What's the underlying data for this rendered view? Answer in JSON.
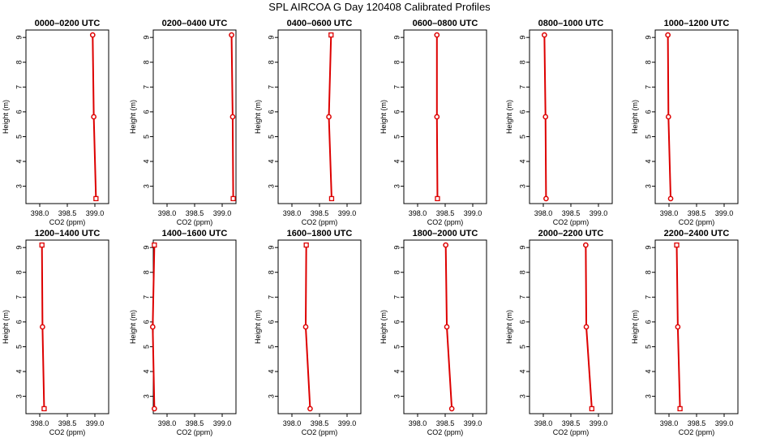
{
  "figure": {
    "title": "SPL AIRCOA G  Day 120408  Calibrated Profiles"
  },
  "style": {
    "line_color": "#dd0000",
    "marker_color": "#dd0000",
    "axis_color": "#000000"
  },
  "chart_data": [
    {
      "type": "line",
      "title": "0000–0200 UTC",
      "xlabel": "CO2 (ppm)",
      "ylabel": "Height (m)",
      "xlim": [
        397.75,
        399.25
      ],
      "ylim": [
        2.3,
        9.3
      ],
      "xticks": [
        "398.0",
        "398.5",
        "399.0"
      ],
      "yticks": [
        "3",
        "4",
        "5",
        "6",
        "7",
        "8",
        "9"
      ],
      "series": [
        {
          "heights": [
            2.5,
            5.8,
            9.1
          ],
          "values": [
            399.02,
            398.98,
            398.96
          ],
          "markers": [
            "square",
            "circle",
            "circle"
          ]
        }
      ]
    },
    {
      "type": "line",
      "title": "0200–0400 UTC",
      "xlabel": "CO2 (ppm)",
      "ylabel": "Height (m)",
      "xlim": [
        397.75,
        399.25
      ],
      "ylim": [
        2.3,
        9.3
      ],
      "xticks": [
        "398.0",
        "398.5",
        "399.0"
      ],
      "yticks": [
        "3",
        "4",
        "5",
        "6",
        "7",
        "8",
        "9"
      ],
      "series": [
        {
          "heights": [
            2.5,
            5.8,
            9.1
          ],
          "values": [
            399.2,
            399.19,
            399.17
          ],
          "markers": [
            "square",
            "circle",
            "circle"
          ]
        }
      ]
    },
    {
      "type": "line",
      "title": "0400–0600 UTC",
      "xlabel": "CO2 (ppm)",
      "ylabel": "Height (m)",
      "xlim": [
        397.75,
        399.25
      ],
      "ylim": [
        2.3,
        9.3
      ],
      "xticks": [
        "398.0",
        "398.5",
        "399.0"
      ],
      "yticks": [
        "3",
        "4",
        "5",
        "6",
        "7",
        "8",
        "9"
      ],
      "series": [
        {
          "heights": [
            2.5,
            5.8,
            9.1
          ],
          "values": [
            398.72,
            398.67,
            398.71
          ],
          "markers": [
            "square",
            "circle",
            "square"
          ]
        }
      ]
    },
    {
      "type": "line",
      "title": "0600–0800 UTC",
      "xlabel": "CO2 (ppm)",
      "ylabel": "Height (m)",
      "xlim": [
        397.75,
        399.25
      ],
      "ylim": [
        2.3,
        9.3
      ],
      "xticks": [
        "398.0",
        "398.5",
        "399.0"
      ],
      "yticks": [
        "3",
        "4",
        "5",
        "6",
        "7",
        "8",
        "9"
      ],
      "series": [
        {
          "heights": [
            2.5,
            5.8,
            9.1
          ],
          "values": [
            398.36,
            398.35,
            398.35
          ],
          "markers": [
            "square",
            "circle",
            "circle"
          ]
        }
      ]
    },
    {
      "type": "line",
      "title": "0800–1000 UTC",
      "xlabel": "CO2 (ppm)",
      "ylabel": "Height (m)",
      "xlim": [
        397.75,
        399.25
      ],
      "ylim": [
        2.3,
        9.3
      ],
      "xticks": [
        "398.0",
        "398.5",
        "399.0"
      ],
      "yticks": [
        "3",
        "4",
        "5",
        "6",
        "7",
        "8",
        "9"
      ],
      "series": [
        {
          "heights": [
            2.5,
            5.8,
            9.1
          ],
          "values": [
            398.05,
            398.04,
            398.02
          ],
          "markers": [
            "circle",
            "circle",
            "circle"
          ]
        }
      ]
    },
    {
      "type": "line",
      "title": "1000–1200 UTC",
      "xlabel": "CO2 (ppm)",
      "ylabel": "Height (m)",
      "xlim": [
        397.75,
        399.25
      ],
      "ylim": [
        2.3,
        9.3
      ],
      "xticks": [
        "398.0",
        "398.5",
        "399.0"
      ],
      "yticks": [
        "3",
        "4",
        "5",
        "6",
        "7",
        "8",
        "9"
      ],
      "series": [
        {
          "heights": [
            2.5,
            5.8,
            9.1
          ],
          "values": [
            398.03,
            397.99,
            397.98
          ],
          "markers": [
            "circle",
            "circle",
            "circle"
          ]
        }
      ]
    },
    {
      "type": "line",
      "title": "1200–1400 UTC",
      "xlabel": "CO2 (ppm)",
      "ylabel": "Height (m)",
      "xlim": [
        397.75,
        399.25
      ],
      "ylim": [
        2.3,
        9.3
      ],
      "xticks": [
        "398.0",
        "398.5",
        "399.0"
      ],
      "yticks": [
        "3",
        "4",
        "5",
        "6",
        "7",
        "8",
        "9"
      ],
      "series": [
        {
          "heights": [
            2.5,
            5.8,
            9.1
          ],
          "values": [
            398.08,
            398.05,
            398.04
          ],
          "markers": [
            "square",
            "circle",
            "square"
          ]
        }
      ]
    },
    {
      "type": "line",
      "title": "1400–1600 UTC",
      "xlabel": "CO2 (ppm)",
      "ylabel": "Height (m)",
      "xlim": [
        397.75,
        399.25
      ],
      "ylim": [
        2.3,
        9.3
      ],
      "xticks": [
        "398.0",
        "398.5",
        "399.0"
      ],
      "yticks": [
        "3",
        "4",
        "5",
        "6",
        "7",
        "8",
        "9"
      ],
      "series": [
        {
          "heights": [
            2.5,
            5.8,
            9.1
          ],
          "values": [
            397.77,
            397.74,
            397.77
          ],
          "markers": [
            "circle",
            "circle",
            "square"
          ]
        }
      ]
    },
    {
      "type": "line",
      "title": "1600–1800 UTC",
      "xlabel": "CO2 (ppm)",
      "ylabel": "Height (m)",
      "xlim": [
        397.75,
        399.25
      ],
      "ylim": [
        2.3,
        9.3
      ],
      "xticks": [
        "398.0",
        "398.5",
        "399.0"
      ],
      "yticks": [
        "3",
        "4",
        "5",
        "6",
        "7",
        "8",
        "9"
      ],
      "series": [
        {
          "heights": [
            2.5,
            5.8,
            9.1
          ],
          "values": [
            398.33,
            398.25,
            398.26
          ],
          "markers": [
            "circle",
            "circle",
            "square"
          ]
        }
      ]
    },
    {
      "type": "line",
      "title": "1800–2000 UTC",
      "xlabel": "CO2 (ppm)",
      "ylabel": "Height (m)",
      "xlim": [
        397.75,
        399.25
      ],
      "ylim": [
        2.3,
        9.3
      ],
      "xticks": [
        "398.0",
        "398.5",
        "399.0"
      ],
      "yticks": [
        "3",
        "4",
        "5",
        "6",
        "7",
        "8",
        "9"
      ],
      "series": [
        {
          "heights": [
            2.5,
            5.8,
            9.1
          ],
          "values": [
            398.62,
            398.53,
            398.51
          ],
          "markers": [
            "circle",
            "circle",
            "circle"
          ]
        }
      ]
    },
    {
      "type": "line",
      "title": "2000–2200 UTC",
      "xlabel": "CO2 (ppm)",
      "ylabel": "Height (m)",
      "xlim": [
        397.75,
        399.25
      ],
      "ylim": [
        2.3,
        9.3
      ],
      "xticks": [
        "398.0",
        "398.5",
        "399.0"
      ],
      "yticks": [
        "3",
        "4",
        "5",
        "6",
        "7",
        "8",
        "9"
      ],
      "series": [
        {
          "heights": [
            2.5,
            5.8,
            9.1
          ],
          "values": [
            398.88,
            398.78,
            398.77
          ],
          "markers": [
            "square",
            "circle",
            "circle"
          ]
        }
      ]
    },
    {
      "type": "line",
      "title": "2200–2400 UTC",
      "xlabel": "CO2 (ppm)",
      "ylabel": "Height (m)",
      "xlim": [
        397.75,
        399.25
      ],
      "ylim": [
        2.3,
        9.3
      ],
      "xticks": [
        "398.0",
        "398.5",
        "399.0"
      ],
      "yticks": [
        "3",
        "4",
        "5",
        "6",
        "7",
        "8",
        "9"
      ],
      "series": [
        {
          "heights": [
            2.5,
            5.8,
            9.1
          ],
          "values": [
            398.2,
            398.16,
            398.14
          ],
          "markers": [
            "square",
            "circle",
            "square"
          ]
        }
      ]
    }
  ]
}
